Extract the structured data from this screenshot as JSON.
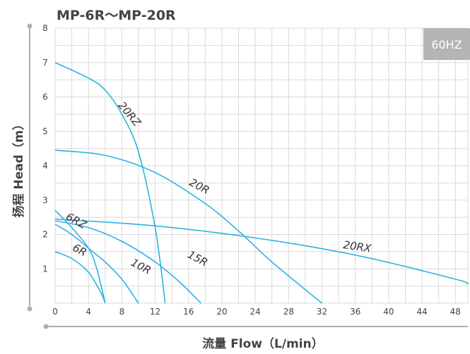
{
  "title": "MP-6R〜MP-20R",
  "badge": "60HZ",
  "colors": {
    "curve": "#2bb4e3",
    "grid": "#d9d9d9",
    "axis": "#b0b0b0",
    "badge_bg": "#b4b4b4",
    "text": "#444444"
  },
  "chart_data": {
    "type": "line",
    "title": "MP-6R〜MP-20R",
    "xlabel": "流量 Flow（L/min）",
    "ylabel": "扬程 Head（m）",
    "xlim": [
      0,
      49.5
    ],
    "ylim": [
      0,
      8
    ],
    "xticks": [
      0,
      4,
      8,
      12,
      16,
      20,
      24,
      28,
      32,
      36,
      40,
      44,
      48
    ],
    "yticks": [
      1,
      2,
      3,
      4,
      5,
      6,
      7,
      8
    ],
    "x_minor_step": 2,
    "y_minor_step": 0.5,
    "grid": true,
    "series": [
      {
        "name": "6R",
        "label_at": [
          2.0,
          1.55
        ],
        "label_angle": 28,
        "points": [
          [
            0,
            1.5
          ],
          [
            2,
            1.3
          ],
          [
            4,
            0.9
          ],
          [
            5.5,
            0.3
          ],
          [
            6,
            0
          ]
        ]
      },
      {
        "name": "10R",
        "label_at": [
          9.0,
          1.12
        ],
        "label_angle": 28,
        "points": [
          [
            0,
            2.3
          ],
          [
            2,
            2.0
          ],
          [
            4,
            1.6
          ],
          [
            6,
            1.2
          ],
          [
            8,
            0.7
          ],
          [
            10,
            0
          ]
        ]
      },
      {
        "name": "6RZ",
        "label_at": [
          1.2,
          2.45
        ],
        "label_angle": 28,
        "points": [
          [
            0,
            2.7
          ],
          [
            2,
            2.2
          ],
          [
            4,
            1.6
          ],
          [
            5,
            1.0
          ],
          [
            6,
            0
          ]
        ]
      },
      {
        "name": "15R",
        "label_at": [
          15.8,
          1.35
        ],
        "label_angle": 28,
        "points": [
          [
            0,
            2.4
          ],
          [
            4,
            2.2
          ],
          [
            8,
            1.8
          ],
          [
            12,
            1.2
          ],
          [
            15,
            0.6
          ],
          [
            17.5,
            0
          ]
        ]
      },
      {
        "name": "20RZ",
        "label_at": [
          7.5,
          5.75
        ],
        "label_angle": 50,
        "points": [
          [
            0,
            7.0
          ],
          [
            4,
            6.55
          ],
          [
            6,
            6.2
          ],
          [
            8,
            5.5
          ],
          [
            10,
            4.4
          ],
          [
            12,
            2.2
          ],
          [
            13.2,
            0
          ]
        ]
      },
      {
        "name": "20R",
        "label_at": [
          16.0,
          3.45
        ],
        "label_angle": 28,
        "points": [
          [
            0,
            4.45
          ],
          [
            6,
            4.3
          ],
          [
            12,
            3.8
          ],
          [
            18,
            2.9
          ],
          [
            22,
            2.1
          ],
          [
            26,
            1.2
          ],
          [
            32,
            0
          ]
        ]
      },
      {
        "name": "20RX",
        "label_at": [
          34.5,
          1.6
        ],
        "label_angle": 8,
        "points": [
          [
            0,
            2.45
          ],
          [
            12,
            2.25
          ],
          [
            24,
            1.9
          ],
          [
            36,
            1.4
          ],
          [
            48,
            0.7
          ],
          [
            49.5,
            0.55
          ]
        ]
      }
    ]
  }
}
